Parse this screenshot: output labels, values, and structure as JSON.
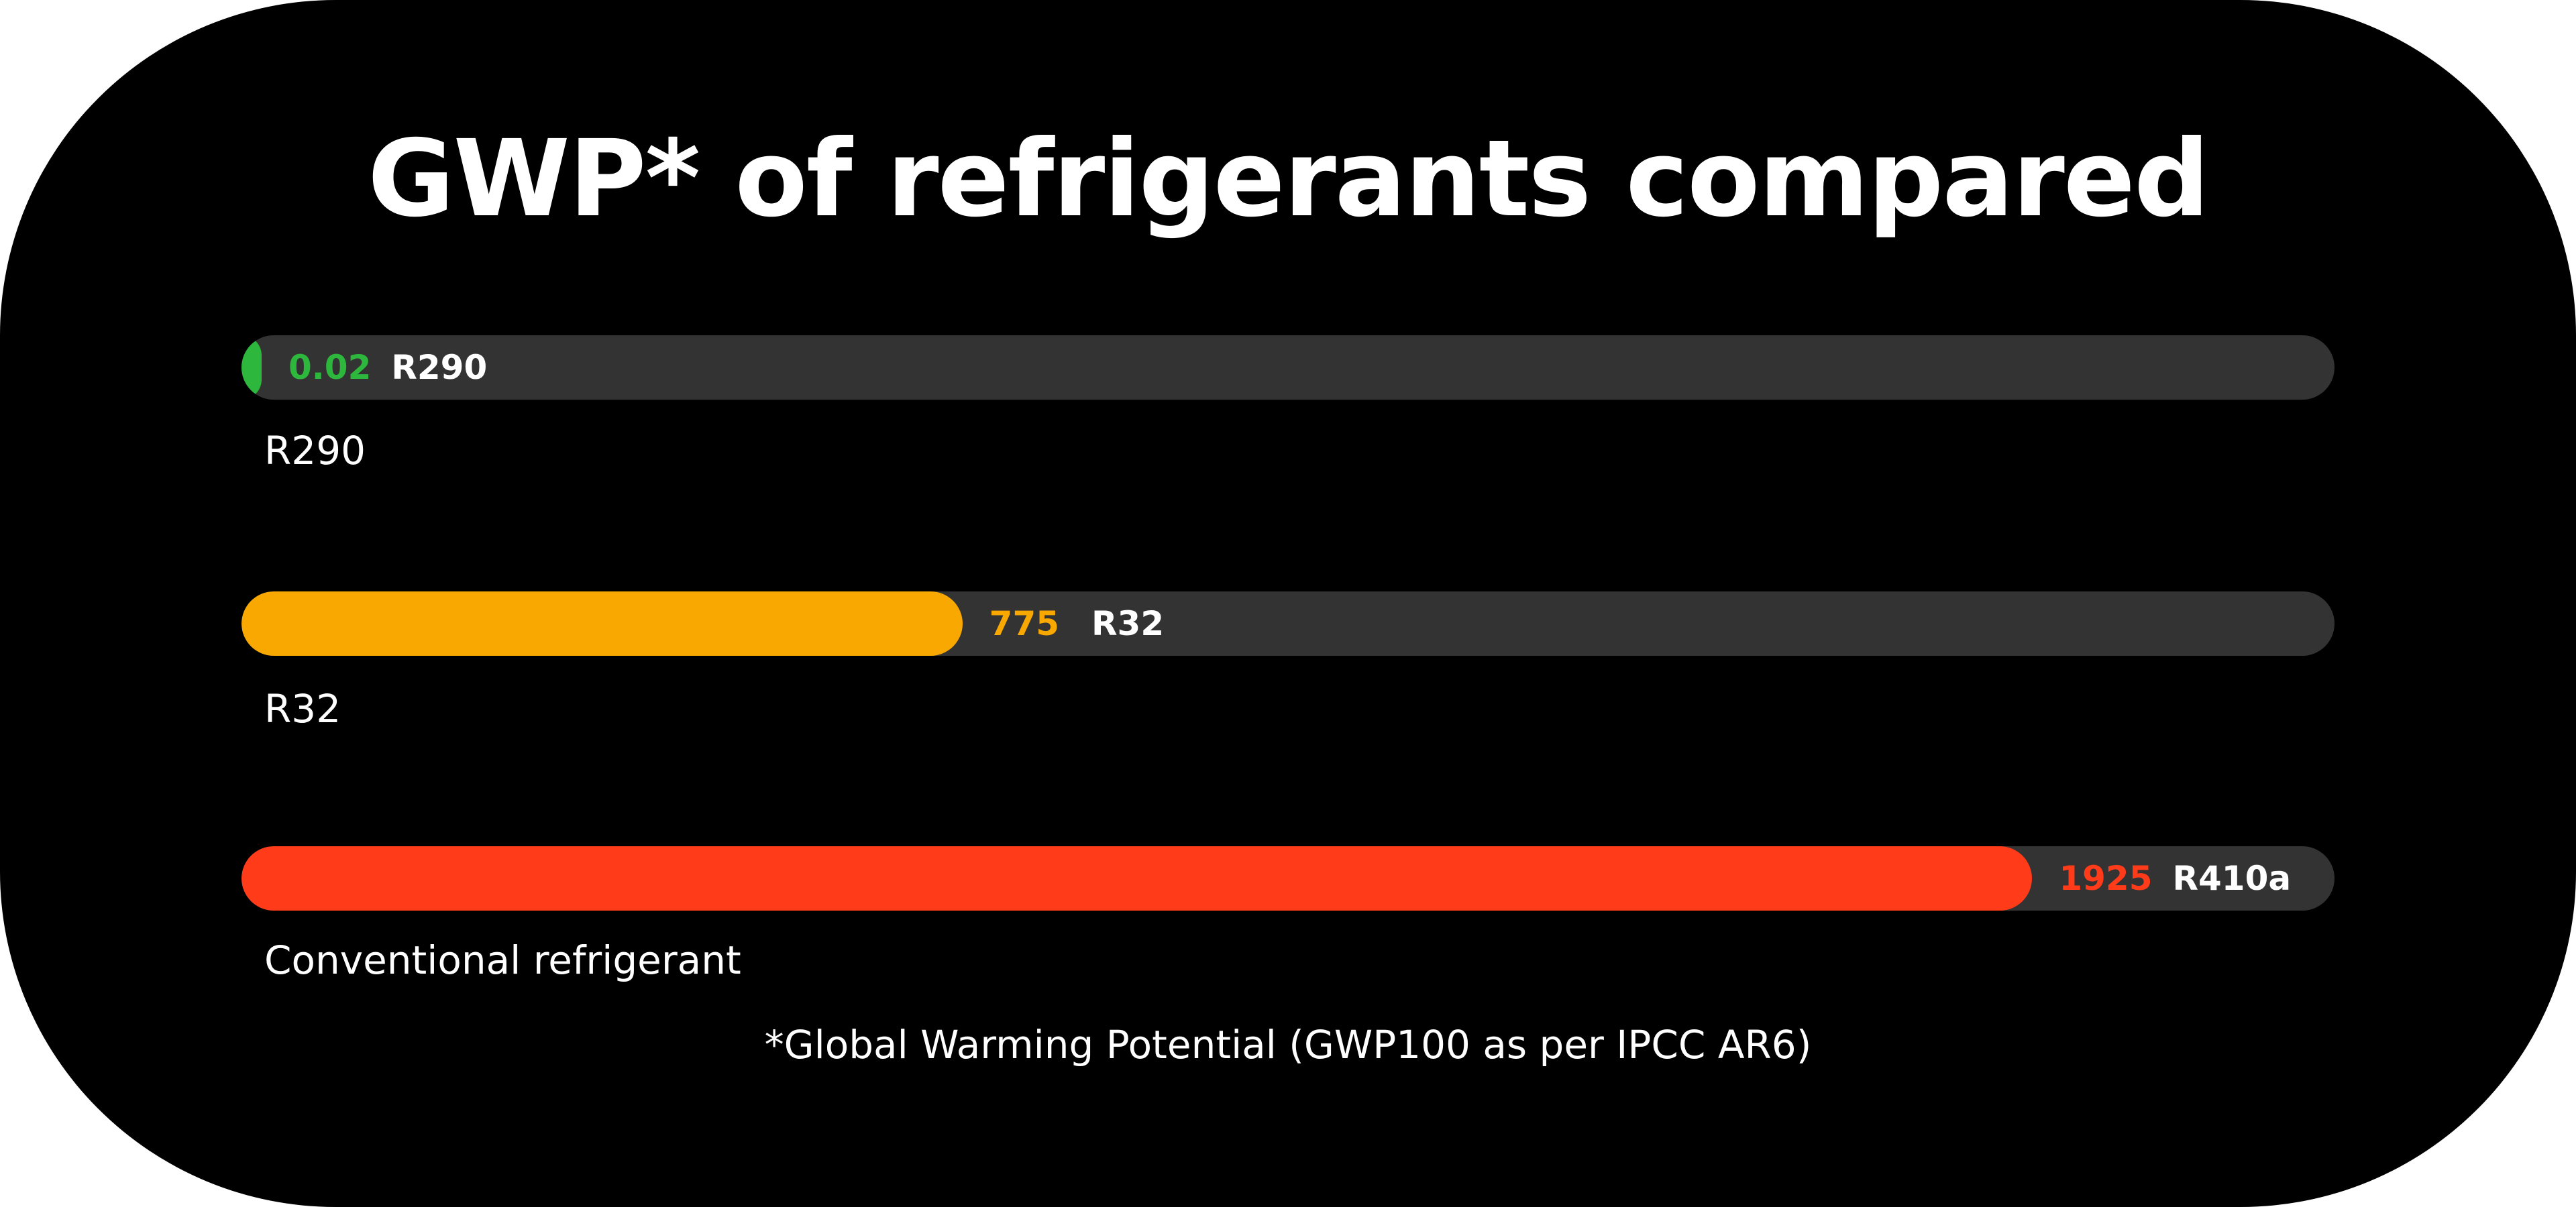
{
  "chart_data": {
    "type": "bar",
    "orientation": "horizontal",
    "title": "GWP* of refrigerants compared",
    "categories": [
      "R290",
      "R32",
      "R410a"
    ],
    "values": [
      0.02,
      775,
      1925
    ],
    "value_labels": [
      "0.02",
      "775",
      "1925"
    ],
    "series_colors": [
      "#2db83d",
      "#f8a800",
      "#ff3b1a"
    ],
    "captions": [
      "R290",
      "R32",
      "Conventional refrigerant"
    ],
    "xlim": [
      0,
      2250
    ],
    "grid": false,
    "legend": "none",
    "footnote": "*Global Warming Potential (GWP100 as per IPCC AR6)"
  },
  "colors": {
    "background": "#000000",
    "track": "#333333",
    "text": "#ffffff"
  }
}
